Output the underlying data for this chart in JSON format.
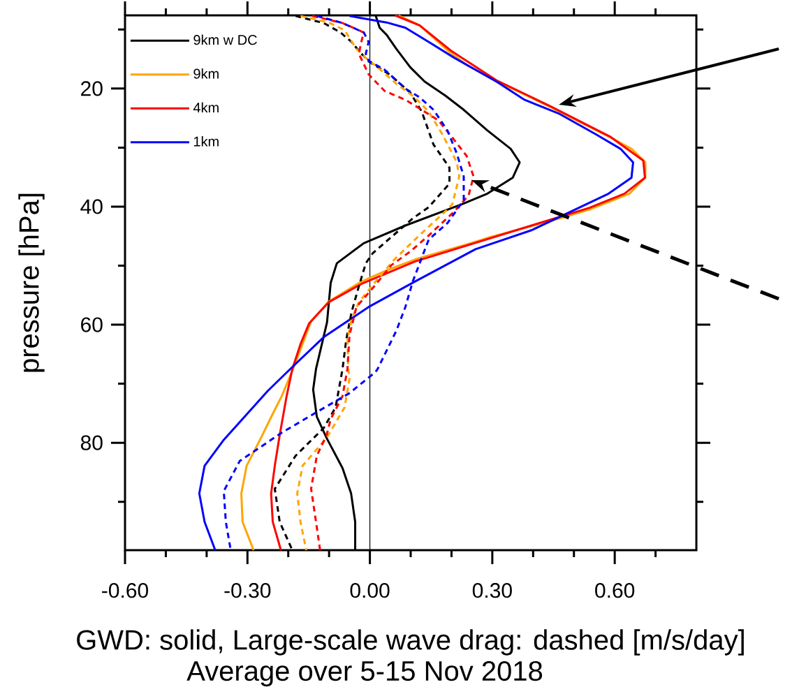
{
  "chart_data": {
    "type": "line",
    "xlabel": "GWD: solid, Large-scale wave drag: dashed [m/s/day]",
    "ylabel": "pressure [hPa]",
    "annotations": [
      "Average over 5-15 Nov 2018"
    ],
    "xlim": [
      -0.6,
      0.8
    ],
    "ylim": [
      98.2,
      7.6
    ],
    "xticks": [
      {
        "value": -0.6,
        "label": "-0.60"
      },
      {
        "value": -0.3,
        "label": "-0.30"
      },
      {
        "value": 0,
        "label": "0.00"
      },
      {
        "value": 0.3,
        "label": "0.30"
      },
      {
        "value": 0.6,
        "label": "0.60"
      },
      {
        "value": -0.5,
        "label": null
      },
      {
        "value": -0.4,
        "label": null
      },
      {
        "value": -0.2,
        "label": null
      },
      {
        "value": -0.1,
        "label": null
      },
      {
        "value": 0.1,
        "label": null
      },
      {
        "value": 0.2,
        "label": null
      },
      {
        "value": 0.4,
        "label": null
      },
      {
        "value": 0.5,
        "label": null
      },
      {
        "value": 0.7,
        "label": null
      }
    ],
    "yticks": [
      20,
      40,
      60,
      80,
      {
        "value": 10,
        "label": null
      },
      {
        "value": 30,
        "label": null
      },
      {
        "value": 50,
        "label": null
      },
      {
        "value": 70,
        "label": null
      },
      {
        "value": 90,
        "label": null
      }
    ],
    "legend": "top left",
    "ref_lines": [
      {
        "axis": "x",
        "value": 0,
        "color": "#000000"
      }
    ],
    "series": [
      {
        "name": "9km w DC",
        "color": "#000000",
        "line_style": "solid",
        "x": [
          0.014,
          0.024,
          0.041,
          0.065,
          0.099,
          0.134,
          0.185,
          0.23,
          0.288,
          0.345,
          0.367,
          0.35,
          0.288,
          0.225,
          0.087,
          -0.015,
          -0.081,
          -0.096,
          -0.105,
          -0.132,
          -0.139,
          -0.13,
          -0.106,
          -0.067,
          -0.046,
          -0.036,
          -0.036
        ],
        "values": [
          7.6,
          9.7,
          10.9,
          13.3,
          16.4,
          18.8,
          21.2,
          23.6,
          27.1,
          30.2,
          32.5,
          35.1,
          37.8,
          39.6,
          43.2,
          46.2,
          49.6,
          52.9,
          59.6,
          67.5,
          71.0,
          75.6,
          79.2,
          84.3,
          88.6,
          93.4,
          98.2
        ]
      },
      {
        "name": "9km",
        "color": "#ffa500",
        "line_style": "solid",
        "x": [
          0.07,
          0.122,
          0.195,
          0.237,
          0.31,
          0.367,
          0.442,
          0.521,
          0.59,
          0.641,
          0.675,
          0.675,
          0.636,
          0.538,
          0.465,
          0.293,
          0.247,
          0.117,
          0.041,
          -0.021,
          -0.101,
          -0.144,
          -0.187,
          -0.216,
          -0.238,
          -0.267,
          -0.302,
          -0.315,
          -0.312,
          -0.285
        ],
        "values": [
          7.6,
          9.3,
          13.8,
          16.0,
          18.8,
          20.6,
          23.1,
          25.9,
          28.3,
          30.2,
          32.5,
          35.1,
          37.8,
          40.5,
          42.0,
          45.2,
          46.2,
          48.8,
          50.8,
          52.7,
          56.1,
          59.4,
          67.3,
          72.1,
          75.1,
          79.2,
          83.9,
          88.6,
          93.4,
          98.2
        ]
      },
      {
        "name": "4km",
        "color": "#ff0000",
        "line_style": "solid",
        "x": [
          0.062,
          0.122,
          0.199,
          0.31,
          0.442,
          0.59,
          0.67,
          0.674,
          0.624,
          0.538,
          0.396,
          0.11,
          -0.021,
          -0.101,
          -0.149,
          -0.17,
          -0.19,
          -0.204,
          -0.221,
          -0.233,
          -0.242,
          -0.238,
          -0.218
        ],
        "values": [
          7.6,
          9.3,
          13.6,
          18.6,
          23.0,
          28.2,
          32.2,
          35.1,
          37.8,
          40.2,
          43.2,
          49.3,
          53.1,
          56.2,
          59.8,
          63.3,
          67.5,
          72.1,
          78.7,
          83.9,
          88.6,
          93.4,
          98.2
        ]
      },
      {
        "name": "1km",
        "color": "#0000ff",
        "line_style": "solid",
        "x": [
          -0.05,
          0.041,
          0.087,
          0.144,
          0.207,
          0.31,
          0.379,
          0.465,
          0.555,
          0.614,
          0.645,
          0.641,
          0.585,
          0.494,
          0.396,
          0.259,
          0.11,
          -0.003,
          -0.113,
          -0.192,
          -0.25,
          -0.358,
          -0.405,
          -0.418,
          -0.405,
          -0.379
        ],
        "values": [
          7.7,
          8.8,
          9.7,
          12.1,
          14.8,
          18.8,
          21.9,
          24.3,
          27.8,
          30.2,
          32.5,
          35.1,
          37.8,
          40.8,
          44.0,
          47.2,
          52.7,
          57.0,
          62.1,
          67.3,
          71.2,
          79.5,
          83.9,
          88.6,
          93.4,
          98.2
        ]
      },
      {
        "color": "#000000",
        "line_style": "dashed",
        "x": [
          -0.182,
          -0.113,
          -0.072,
          -0.045,
          -0.027,
          -0.003,
          0.048,
          0.099,
          0.127,
          0.156,
          0.195,
          0.195,
          0.144,
          0.105,
          0.007,
          -0.01,
          -0.027,
          -0.045,
          -0.058,
          -0.067,
          -0.084,
          -0.113,
          -0.182,
          -0.233,
          -0.221,
          -0.19
        ],
        "values": [
          7.7,
          8.9,
          10.5,
          12.1,
          13.6,
          15.4,
          17.6,
          20.7,
          23.9,
          29.5,
          33.4,
          36.1,
          40.1,
          42.0,
          47.9,
          49.6,
          53.5,
          57.9,
          62.6,
          67.5,
          74.0,
          77.5,
          82.2,
          87.8,
          93.4,
          98.2
        ]
      },
      {
        "color": "#ffa500",
        "line_style": "dashed",
        "x": [
          -0.17,
          -0.101,
          -0.062,
          -0.033,
          -0.01,
          0.019,
          0.065,
          0.11,
          0.144,
          0.178,
          0.213,
          0.219,
          0.202,
          0.185,
          0.11,
          0.058,
          0.014,
          -0.027,
          -0.045,
          -0.055,
          -0.053,
          -0.05,
          -0.062,
          -0.106,
          -0.165,
          -0.178,
          -0.17,
          -0.156
        ],
        "values": [
          7.7,
          8.8,
          10.1,
          13.3,
          14.8,
          16.4,
          19.2,
          21.5,
          23.9,
          27.8,
          32.5,
          34.9,
          39.6,
          40.8,
          45.6,
          49.1,
          52.7,
          56.2,
          59.1,
          62.6,
          67.5,
          69.2,
          74.0,
          79.2,
          83.9,
          88.6,
          93.4,
          98.2
        ]
      },
      {
        "color": "#ff0000",
        "line_style": "dashed",
        "x": [
          -0.141,
          -0.067,
          -0.015,
          -0.021,
          -0.027,
          -0.003,
          0.036,
          0.087,
          0.127,
          0.168,
          0.202,
          0.237,
          0.254,
          0.242,
          0.207,
          0.144,
          0.099,
          0.053,
          0.007,
          -0.033,
          -0.05,
          -0.055,
          -0.067,
          -0.096,
          -0.106,
          -0.13,
          -0.144,
          -0.132,
          -0.122
        ],
        "values": [
          7.7,
          8.9,
          10.5,
          12.1,
          14.1,
          17.6,
          20.4,
          21.9,
          23.6,
          25.4,
          28.3,
          31.4,
          34.9,
          38.1,
          40.8,
          44.9,
          47.6,
          49.9,
          53.8,
          57.0,
          61.8,
          67.5,
          72.1,
          76.0,
          78.7,
          82.2,
          87.8,
          93.4,
          98.2
        ]
      },
      {
        "color": "#0000ff",
        "line_style": "dashed",
        "x": [
          -0.13,
          -0.067,
          -0.015,
          -0.003,
          -0.01,
          -0.003,
          0.036,
          0.087,
          0.122,
          0.156,
          0.19,
          0.213,
          0.23,
          0.23,
          0.19,
          0.144,
          0.122,
          0.105,
          0.087,
          0.065,
          0.019,
          0.014,
          -0.05,
          -0.13,
          -0.216,
          -0.319,
          -0.358,
          -0.353,
          -0.341
        ],
        "values": [
          7.7,
          8.9,
          10.5,
          12.1,
          14.1,
          15.3,
          16.8,
          20.0,
          21.5,
          23.6,
          27.1,
          31.0,
          34.9,
          38.9,
          42.8,
          45.6,
          49.6,
          52.7,
          57.0,
          61.0,
          67.5,
          68.0,
          71.6,
          74.8,
          78.3,
          83.1,
          88.2,
          93.4,
          98.2
        ]
      }
    ]
  }
}
